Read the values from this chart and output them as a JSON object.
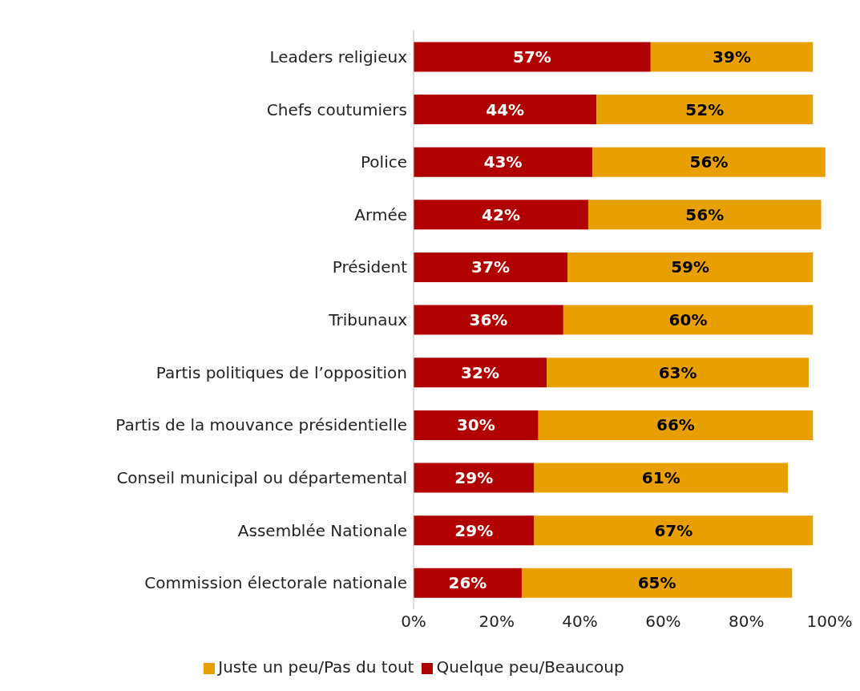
{
  "chart_data": {
    "type": "bar",
    "orientation": "horizontal",
    "stacked": true,
    "categories": [
      "Leaders religieux",
      "Chefs coutumiers",
      "Police",
      "Armée",
      "Président",
      "Tribunaux",
      "Partis politiques de l’opposition",
      "Partis de la mouvance présidentielle",
      "Conseil municipal ou départemental",
      "Assemblée Nationale",
      "Commission électorale nationale"
    ],
    "series": [
      {
        "name": "Quelque peu/Beaucoup",
        "color": "#b00000",
        "values": [
          57,
          44,
          43,
          42,
          37,
          36,
          32,
          30,
          29,
          29,
          26
        ],
        "value_labels": [
          "57%",
          "44%",
          "43%",
          "42%",
          "37%",
          "36%",
          "32%",
          "30%",
          "29%",
          "29%",
          "26%"
        ]
      },
      {
        "name": "Juste un peu/Pas du tout",
        "color": "#e8a000",
        "values": [
          39,
          52,
          56,
          56,
          59,
          60,
          63,
          66,
          61,
          67,
          65
        ],
        "value_labels": [
          "39%",
          "52%",
          "56%",
          "56%",
          "59%",
          "60%",
          "63%",
          "66%",
          "61%",
          "67%",
          "65%"
        ]
      }
    ],
    "xlim": [
      0,
      100
    ],
    "xticks": [
      {
        "value": 0,
        "label": "0%"
      },
      {
        "value": 20,
        "label": "20%"
      },
      {
        "value": 40,
        "label": "40%"
      },
      {
        "value": 60,
        "label": "60%"
      },
      {
        "value": 80,
        "label": "80%"
      },
      {
        "value": 100,
        "label": "100%"
      }
    ],
    "grid": false,
    "legend": "bottom"
  }
}
